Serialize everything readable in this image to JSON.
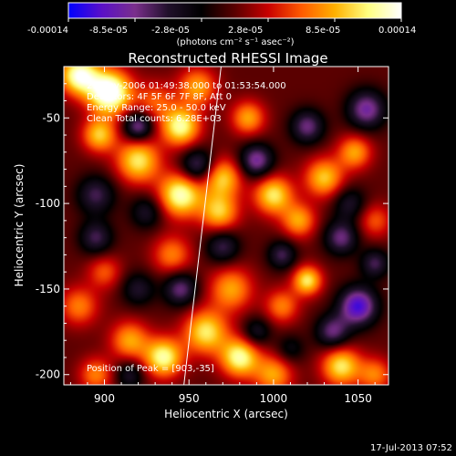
{
  "chart_data": {
    "type": "heatmap",
    "title": "Reconstructed RHESSI Image",
    "xlabel": "Heliocentric X (arcsec)",
    "ylabel": "Heliocentric Y (arcsec)",
    "xlim": [
      876,
      1068
    ],
    "ylim": [
      -206,
      -20
    ],
    "x_ticks": [
      900,
      950,
      1000,
      1050
    ],
    "y_ticks": [
      -50,
      -100,
      -150,
      -200
    ],
    "colorbar": {
      "min": -0.00014,
      "max": 0.00014,
      "tick_labels": [
        "-0.00014",
        "-8.5e-05",
        "-2.8e-05",
        "2.8e-05",
        "8.5e-05",
        "0.00014"
      ],
      "unit_label": "(photons cm⁻² s⁻¹ asec⁻²)",
      "colors": [
        "#0000ff",
        "#5a10c8",
        "#7a2f8c",
        "#20102a",
        "#000000",
        "#5a0000",
        "#c80000",
        "#ff5a00",
        "#ffb000",
        "#ffff80",
        "#ffffff"
      ]
    },
    "annotations": [
      "21-Nov-2006 01:49:38.000 to 01:53:54.000",
      "Detectors: 4F 5F 6F 7F 8F, Att 0",
      "Energy Range: 25.0 - 50.0 keV",
      "Clean    Total counts: 6.28E+03"
    ],
    "peak_label": "Position of Peak = [903,-35]",
    "peak": [
      903,
      -35
    ],
    "limb_line": [
      [
        947,
        -206
      ],
      [
        969,
        -20
      ]
    ],
    "blobs_positive": [
      [
        885,
        -25,
        1.0,
        8
      ],
      [
        903,
        -35,
        1.2,
        9
      ],
      [
        897,
        -60,
        0.7,
        7
      ],
      [
        930,
        -40,
        0.4,
        8
      ],
      [
        955,
        -32,
        0.6,
        8
      ],
      [
        945,
        -55,
        0.9,
        8
      ],
      [
        920,
        -75,
        0.8,
        9
      ],
      [
        945,
        -95,
        0.95,
        9
      ],
      [
        970,
        -85,
        0.7,
        8
      ],
      [
        968,
        -105,
        0.7,
        8
      ],
      [
        985,
        -50,
        0.6,
        7
      ],
      [
        1000,
        -95,
        0.8,
        8
      ],
      [
        1030,
        -85,
        0.7,
        8
      ],
      [
        1048,
        -70,
        0.6,
        7
      ],
      [
        1015,
        -110,
        0.6,
        7
      ],
      [
        940,
        -130,
        0.5,
        8
      ],
      [
        975,
        -150,
        0.6,
        9
      ],
      [
        1005,
        -160,
        0.5,
        7
      ],
      [
        1020,
        -145,
        0.8,
        6
      ],
      [
        885,
        -160,
        0.5,
        8
      ],
      [
        900,
        -140,
        0.4,
        7
      ],
      [
        915,
        -180,
        0.6,
        8
      ],
      [
        935,
        -190,
        0.9,
        8
      ],
      [
        960,
        -175,
        0.8,
        9
      ],
      [
        980,
        -190,
        0.9,
        8
      ],
      [
        1000,
        -200,
        0.6,
        8
      ],
      [
        1040,
        -195,
        0.8,
        8
      ],
      [
        1060,
        -200,
        0.5,
        7
      ],
      [
        895,
        -200,
        0.5,
        7
      ],
      [
        1060,
        -110,
        0.4,
        7
      ]
    ],
    "blobs_negative": [
      [
        920,
        -55,
        -0.7,
        6
      ],
      [
        955,
        -78,
        -0.6,
        7
      ],
      [
        990,
        -75,
        -0.7,
        7
      ],
      [
        1020,
        -55,
        -0.6,
        7
      ],
      [
        1055,
        -45,
        -0.7,
        8
      ],
      [
        1040,
        -120,
        -0.6,
        7
      ],
      [
        1050,
        -160,
        -0.9,
        8
      ],
      [
        1035,
        -175,
        -0.6,
        7
      ],
      [
        895,
        -95,
        -0.5,
        8
      ],
      [
        895,
        -120,
        -0.5,
        7
      ],
      [
        925,
        -105,
        -0.4,
        7
      ],
      [
        945,
        -150,
        -0.6,
        7
      ],
      [
        970,
        -125,
        -0.5,
        7
      ],
      [
        1005,
        -130,
        -0.5,
        6
      ],
      [
        920,
        -150,
        -0.4,
        7
      ],
      [
        990,
        -175,
        -0.4,
        6
      ],
      [
        1010,
        -185,
        -0.3,
        6
      ],
      [
        915,
        -200,
        -0.4,
        6
      ],
      [
        1060,
        -135,
        -0.5,
        6
      ],
      [
        1045,
        -100,
        -0.4,
        7
      ]
    ]
  },
  "footer": {
    "timestamp": "17-Jul-2013 07:52"
  }
}
